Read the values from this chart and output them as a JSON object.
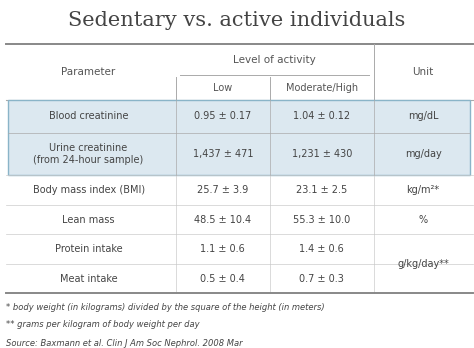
{
  "title": "Sedentary vs. active individuals",
  "title_fontsize": 15,
  "background_color": "#ffffff",
  "highlight_bg": "#dce8f0",
  "highlight_border": "#8ab4c8",
  "col_group_label": "Level of activity",
  "rows": [
    {
      "param": "Blood creatinine",
      "low": "0.95 ± 0.17",
      "high": "1.04 ± 0.12",
      "unit": "mg/dL",
      "highlight": true
    },
    {
      "param": "Urine creatinine\n(from 24-hour sample)",
      "low": "1,437 ± 471",
      "high": "1,231 ± 430",
      "unit": "mg/day",
      "highlight": true
    },
    {
      "param": "Body mass index (BMI)",
      "low": "25.7 ± 3.9",
      "high": "23.1 ± 2.5",
      "unit": "kg/m²*",
      "highlight": false
    },
    {
      "param": "Lean mass",
      "low": "48.5 ± 10.4",
      "high": "55.3 ± 10.0",
      "unit": "%",
      "highlight": false
    },
    {
      "param": "Protein intake",
      "low": "1.1 ± 0.6",
      "high": "1.4 ± 0.6",
      "unit": "",
      "highlight": false
    },
    {
      "param": "Meat intake",
      "low": "0.5 ± 0.4",
      "high": "0.7 ± 0.3",
      "unit": "g/kg/day**",
      "highlight": false
    }
  ],
  "footnotes": [
    "* body weight (in kilograms) divided by the square of the height (in meters)",
    "** grams per kilogram of body weight per day"
  ],
  "source": "Source: Baxmann et al. Clin J Am Soc Nephrol. 2008 Mar",
  "text_color": "#444444",
  "header_text_color": "#555555",
  "font_size": 7.0,
  "header_font_size": 7.5,
  "footnote_font_size": 6.0,
  "source_font_size": 6.0
}
